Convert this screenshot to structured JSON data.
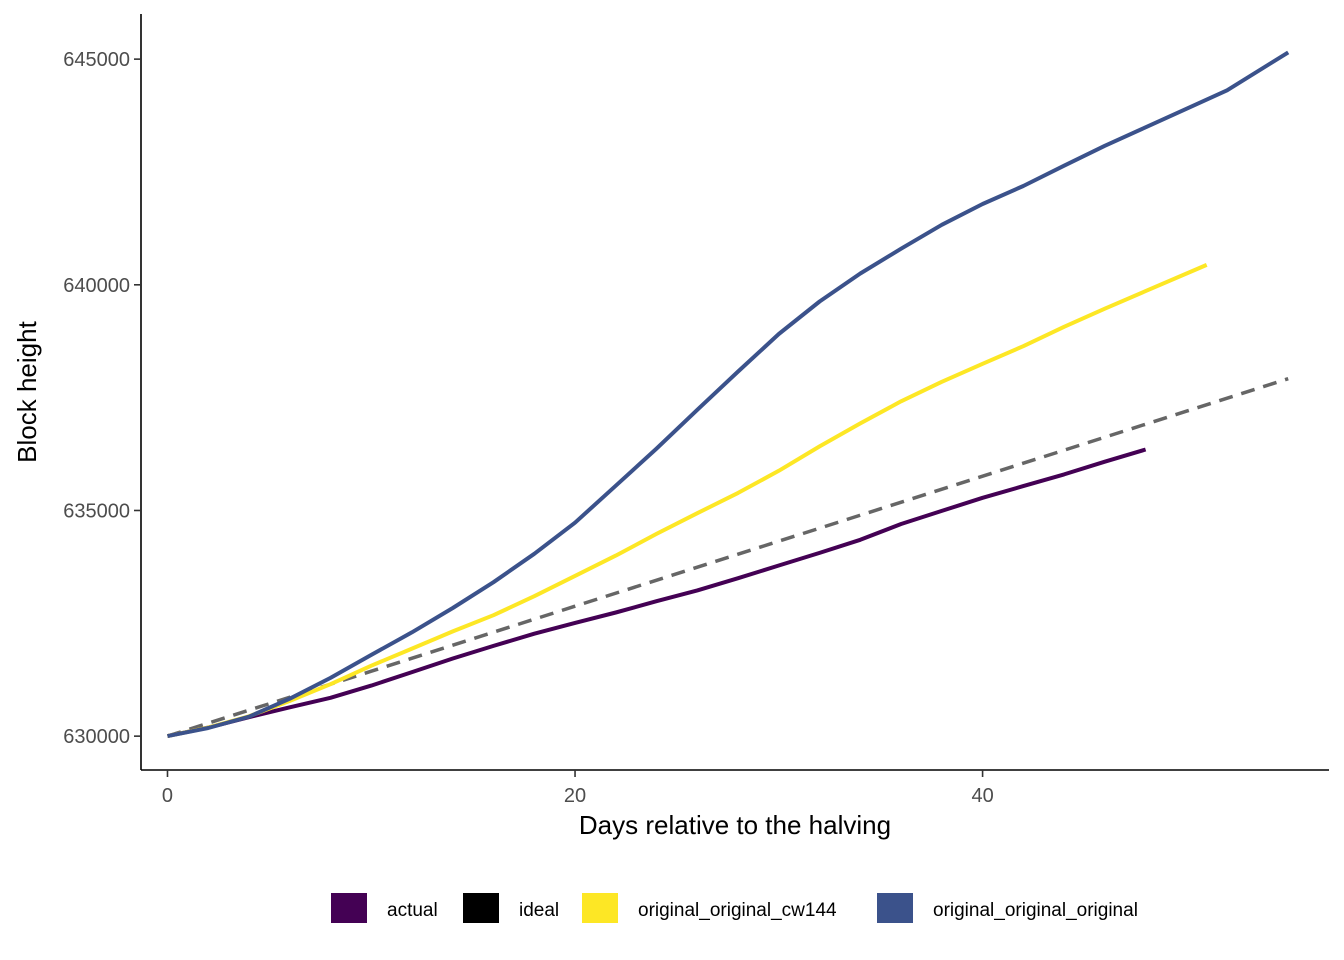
{
  "chart_data": {
    "type": "line",
    "title": "",
    "xlabel": "Days relative to the halving",
    "ylabel": "Block height",
    "xlim": [
      -1.3,
      57
    ],
    "ylim": [
      629250,
      646000
    ],
    "xticks": [
      0,
      20,
      40
    ],
    "xtick_labels": [
      "0",
      "20",
      "40"
    ],
    "yticks": [
      630000,
      635000,
      640000,
      645000
    ],
    "ytick_labels": [
      "630000",
      "635000",
      "640000",
      "645000"
    ],
    "grid": false,
    "legend_position": "bottom",
    "colors": {
      "actual": "#440154",
      "ideal": "#000000",
      "original_original_cw144": "#FDE725",
      "original_original_original": "#3B528B",
      "ideal_line": "#666666"
    },
    "legend": [
      {
        "name": "actual",
        "swatch_color": "#440154"
      },
      {
        "name": "ideal",
        "swatch_color": "#000000"
      },
      {
        "name": "original_original_cw144",
        "swatch_color": "#FDE725"
      },
      {
        "name": "original_original_original",
        "swatch_color": "#3B528B"
      }
    ],
    "series": [
      {
        "name": "ideal",
        "color": "#666666",
        "dash": true,
        "x": [
          0,
          5,
          10,
          15,
          20,
          25,
          30,
          35,
          40,
          45,
          50,
          55
        ],
        "y": [
          630000,
          630720,
          631440,
          632160,
          632880,
          633600,
          634320,
          635040,
          635760,
          636480,
          637200,
          637920
        ]
      },
      {
        "name": "actual",
        "color": "#440154",
        "dash": false,
        "x": [
          0,
          2,
          4,
          6,
          8,
          10,
          12,
          14,
          16,
          18,
          20,
          22,
          24,
          26,
          28,
          30,
          32,
          34,
          36,
          38,
          40,
          42,
          44,
          46,
          48
        ],
        "y": [
          630000,
          630190,
          630420,
          630640,
          630850,
          631120,
          631420,
          631720,
          632000,
          632270,
          632510,
          632740,
          632990,
          633230,
          633500,
          633780,
          634060,
          634350,
          634700,
          634990,
          635280,
          635540,
          635800,
          636080,
          636350
        ]
      },
      {
        "name": "original_original_cw144",
        "color": "#FDE725",
        "dash": false,
        "x": [
          0,
          2,
          4,
          6,
          8,
          10,
          12,
          14,
          16,
          18,
          20,
          22,
          24,
          26,
          28,
          30,
          32,
          34,
          36,
          38,
          40,
          42,
          44,
          46,
          48,
          51
        ],
        "y": [
          630000,
          630190,
          630440,
          630780,
          631150,
          631560,
          631940,
          632320,
          632680,
          633100,
          633550,
          634000,
          634480,
          634940,
          635390,
          635880,
          636420,
          636930,
          637420,
          637850,
          638250,
          638640,
          639070,
          639470,
          639860,
          640440
        ]
      },
      {
        "name": "original_original_original",
        "color": "#3B528B",
        "dash": false,
        "x": [
          0,
          2,
          4,
          6,
          8,
          10,
          12,
          14,
          16,
          18,
          20,
          22,
          24,
          26,
          28,
          30,
          32,
          34,
          36,
          38,
          40,
          42,
          44,
          46,
          48,
          50,
          52,
          55
        ],
        "y": [
          630000,
          630180,
          630430,
          630830,
          631290,
          631800,
          632300,
          632840,
          633410,
          634040,
          634730,
          635550,
          636370,
          637230,
          638080,
          638910,
          639630,
          640250,
          640800,
          641330,
          641790,
          642190,
          642640,
          643080,
          643490,
          643900,
          644310,
          645150
        ]
      }
    ]
  }
}
